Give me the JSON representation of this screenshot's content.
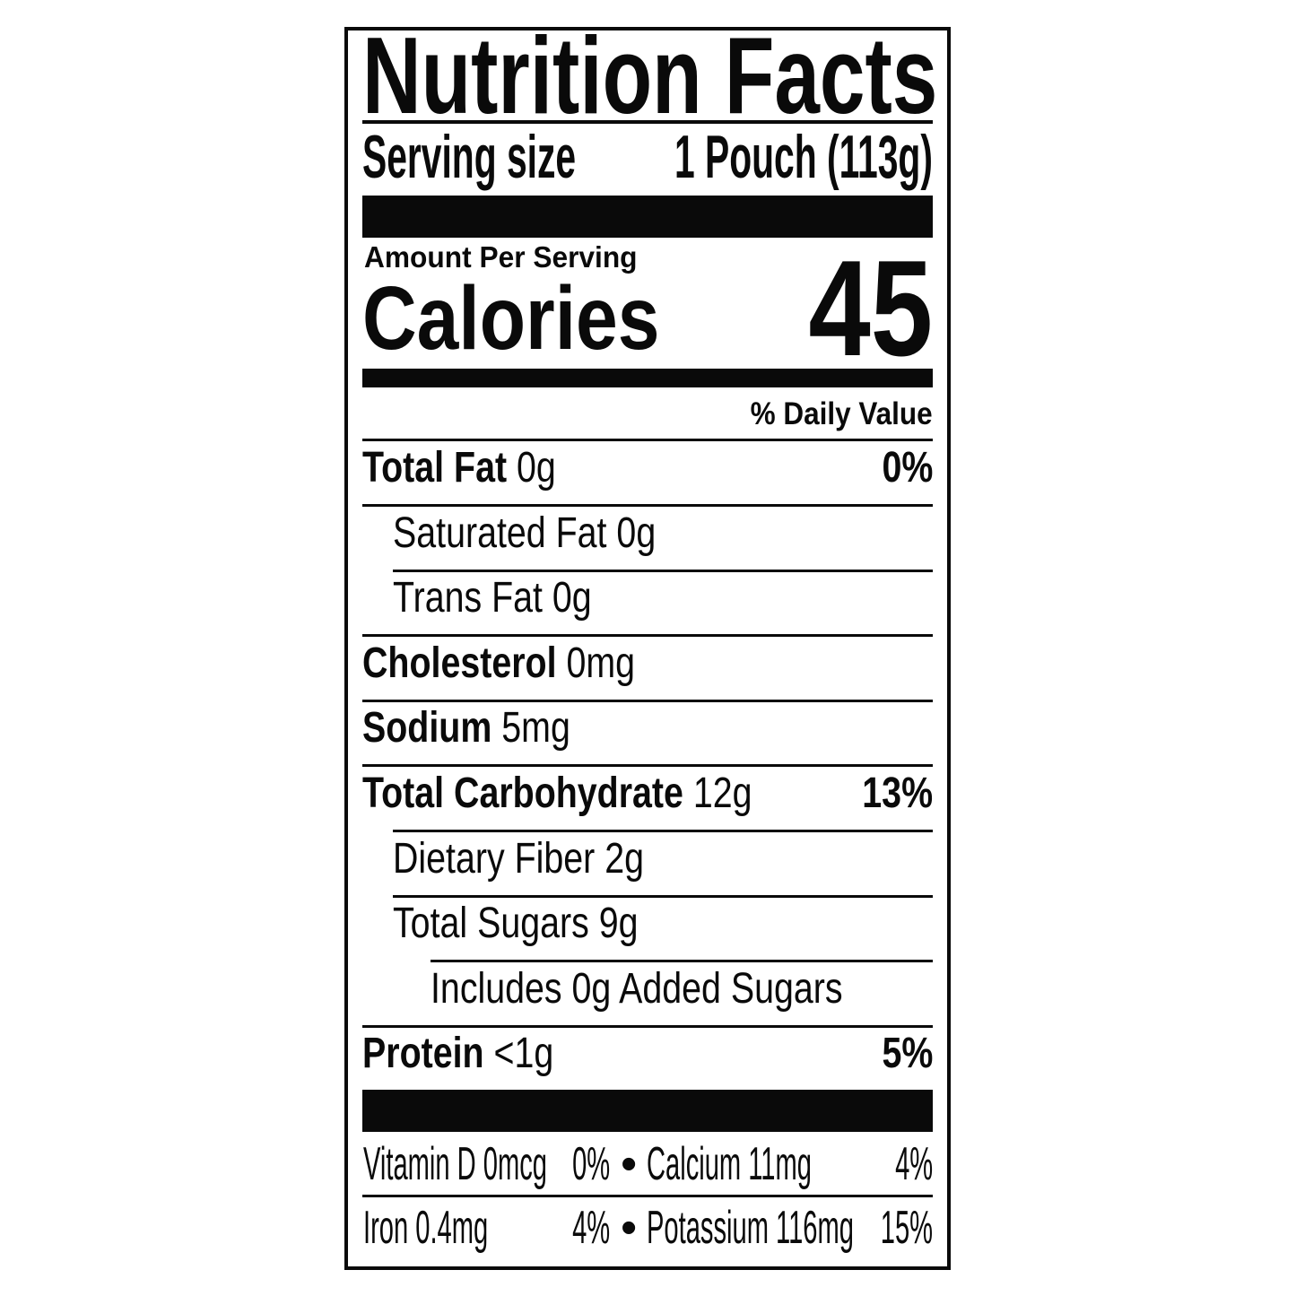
{
  "title": "Nutrition Facts",
  "serving": {
    "label": "Serving size",
    "value": "1 Pouch (113g)"
  },
  "amount_per_serving": "Amount Per Serving",
  "calories": {
    "label": "Calories",
    "value": "45"
  },
  "daily_value_header": "% Daily Value",
  "nutrients": [
    {
      "name": "Total Fat",
      "amount": "0g",
      "dv": "0%"
    },
    {
      "name": "Saturated Fat",
      "amount": "0g"
    },
    {
      "name": "Trans Fat",
      "amount": "0g"
    },
    {
      "name": "Cholesterol",
      "amount": "0mg"
    },
    {
      "name": "Sodium",
      "amount": "5mg"
    },
    {
      "name": "Total Carbohydrate",
      "amount": "12g",
      "dv": "13%"
    },
    {
      "name": "Dietary Fiber",
      "amount": "2g"
    },
    {
      "name": "Total Sugars",
      "amount": "9g"
    },
    {
      "name": "Includes 0g Added Sugars"
    },
    {
      "name": "Protein",
      "amount": "<1g",
      "dv": "5%"
    }
  ],
  "micros": [
    {
      "left": "Vitamin D 0mcg",
      "left_dv": "0%",
      "right": "Calcium 11mg",
      "right_dv": "4%"
    },
    {
      "left": "Iron 0.4mg",
      "left_dv": "4%",
      "right": "Potassium 116mg",
      "right_dv": "15%"
    }
  ],
  "bullet": "•"
}
